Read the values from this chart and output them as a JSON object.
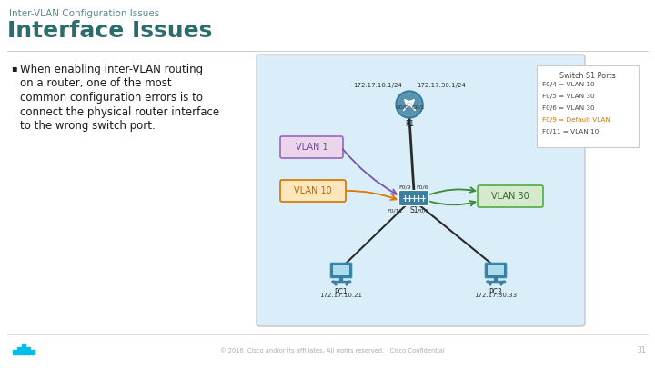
{
  "title_small": "Inter-VLAN Configuration Issues",
  "title_large": "Interface Issues",
  "bullet_text": "When enabling inter-VLAN routing\non a router, one of the most\ncommon configuration errors is to\nconnect the physical router interface\nto the wrong switch port.",
  "footer_text": "© 2016  Cisco and/or its affiliates. All rights reserved.   Cisco Confidential",
  "page_number": "31",
  "bg_color": "#ffffff",
  "title_small_color": "#5a8a8a",
  "title_large_color": "#2e6b6b",
  "bullet_color": "#1a1a1a",
  "accent_color": "#00bceb",
  "diagram_bg": "#daeef9",
  "device_color": "#3a7fa0",
  "line_black": "#2a2a2a",
  "line_orange": "#e07800",
  "line_green": "#3a8a3a",
  "line_purple": "#7755aa",
  "vlan1_face": "#ead5ea",
  "vlan1_edge": "#9966bb",
  "vlan1_text": "#7744aa",
  "vlan10_face": "#fde5bc",
  "vlan10_edge": "#cc7700",
  "vlan10_text": "#bb6600",
  "vlan30_face": "#d5eacc",
  "vlan30_edge": "#55aa44",
  "vlan30_text": "#336633",
  "info_bg": "#ffffff",
  "info_border": "#cccccc",
  "info_title": "#444444",
  "info_normal": "#444444",
  "info_highlight": "#cc7700",
  "footer_color": "#aaaaaa",
  "divider_color": "#cccccc"
}
